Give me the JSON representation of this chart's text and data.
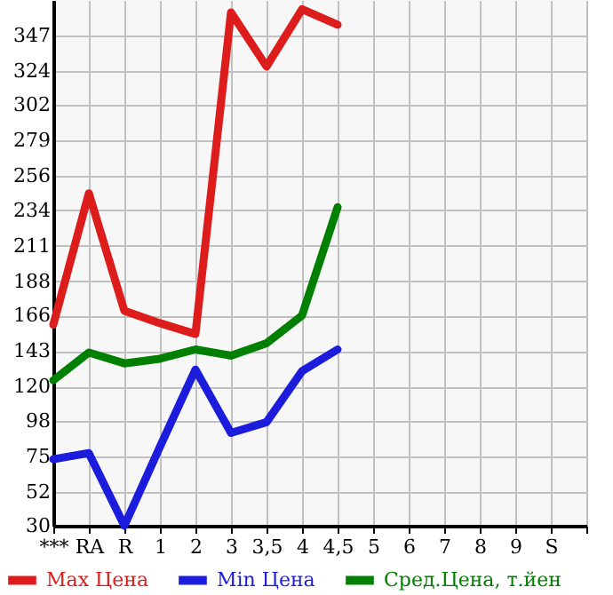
{
  "chart_data": {
    "type": "line",
    "categories": [
      "***",
      "RA",
      "R",
      "1",
      "2",
      "3",
      "3,5",
      "4",
      "4,5",
      "5",
      "6",
      "7",
      "8",
      "9",
      "S",
      null
    ],
    "series": [
      {
        "name": "Max Цена",
        "color": "#dd1c1c",
        "values": [
          160,
          245,
          169,
          161,
          154,
          362,
          327,
          364,
          354,
          null,
          null,
          null,
          null,
          null,
          null,
          null
        ]
      },
      {
        "name": "Min Цена",
        "color": "#1c1cdd",
        "values": [
          73,
          77,
          30,
          81,
          131,
          90,
          97,
          130,
          144,
          null,
          null,
          null,
          null,
          null,
          null,
          null
        ]
      },
      {
        "name": "Сред.Цена, т.йен",
        "color": "#008000",
        "values": [
          124,
          142,
          135,
          138,
          144,
          140,
          148,
          166,
          236,
          null,
          null,
          null,
          null,
          null,
          null,
          null
        ]
      }
    ],
    "ylim": [
      30,
      370
    ],
    "yticks": [
      30,
      52,
      75,
      98,
      120,
      143,
      166,
      188,
      211,
      234,
      256,
      279,
      302,
      324,
      347
    ],
    "grid": true,
    "legend": "bottom",
    "marker": "none",
    "line_style": "solid"
  }
}
